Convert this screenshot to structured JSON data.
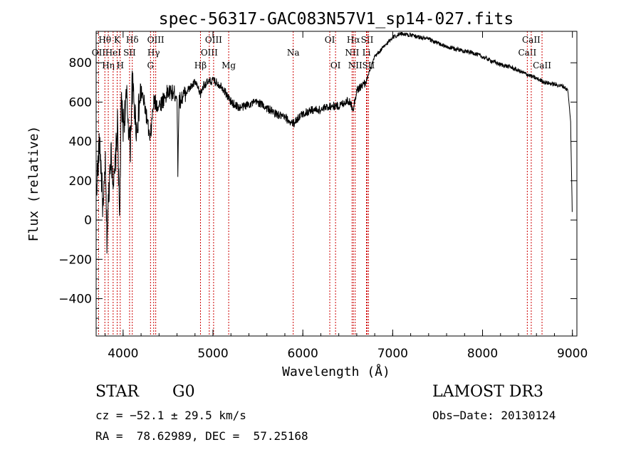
{
  "chart_data": {
    "type": "line",
    "title": "spec-56317-GAC083N57V1_sp14-027.fits",
    "xlabel": "Wavelength (Å)",
    "ylabel": "Flux (relative)",
    "xlim": [
      3700,
      9050
    ],
    "ylim": [
      -590,
      960
    ],
    "xticks": [
      4000,
      5000,
      6000,
      7000,
      8000,
      9000
    ],
    "yticks": [
      -400,
      -200,
      0,
      200,
      400,
      600,
      800
    ],
    "spectrum": {
      "name": "flux",
      "x": [
        3700,
        3740,
        3780,
        3800,
        3820,
        3860,
        3900,
        3940,
        3960,
        3980,
        4000,
        4040,
        4080,
        4100,
        4150,
        4200,
        4250,
        4300,
        4340,
        4400,
        4500,
        4600,
        4610,
        4620,
        4700,
        4800,
        4861,
        4900,
        5000,
        5100,
        5200,
        5300,
        5400,
        5500,
        5600,
        5700,
        5800,
        5893,
        5950,
        6000,
        6100,
        6200,
        6300,
        6400,
        6500,
        6563,
        6600,
        6700,
        6800,
        6900,
        7000,
        7100,
        7200,
        7300,
        7400,
        7500,
        7600,
        7700,
        7800,
        7900,
        8000,
        8100,
        8200,
        8300,
        8400,
        8500,
        8600,
        8700,
        8800,
        8900,
        8950,
        8980,
        9000
      ],
      "y": [
        150,
        400,
        20,
        300,
        -90,
        350,
        180,
        500,
        -40,
        600,
        480,
        620,
        360,
        700,
        460,
        660,
        560,
        400,
        600,
        580,
        650,
        640,
        210,
        600,
        650,
        700,
        640,
        690,
        710,
        680,
        600,
        570,
        590,
        600,
        570,
        540,
        520,
        490,
        520,
        540,
        560,
        560,
        580,
        580,
        610,
        570,
        660,
        700,
        830,
        880,
        930,
        950,
        940,
        930,
        920,
        900,
        880,
        870,
        860,
        850,
        830,
        810,
        790,
        780,
        760,
        740,
        720,
        700,
        690,
        680,
        660,
        500,
        -10
      ]
    },
    "emission_lines": [
      {
        "label": "OII",
        "x": 3727,
        "row": 1
      },
      {
        "label": "Hθ",
        "x": 3797,
        "row": 0
      },
      {
        "label": "Hη",
        "x": 3835,
        "row": 2
      },
      {
        "label": "HeI",
        "x": 3889,
        "row": 1
      },
      {
        "label": "K",
        "x": 3934,
        "row": 0
      },
      {
        "label": "H",
        "x": 3968,
        "row": 2
      },
      {
        "label": "SII",
        "x": 4072,
        "row": 1
      },
      {
        "label": "Hδ",
        "x": 4102,
        "row": 0
      },
      {
        "label": "Hγ",
        "x": 4340,
        "row": 1
      },
      {
        "label": "G",
        "x": 4305,
        "row": 2
      },
      {
        "label": "OIII",
        "x": 4363,
        "row": 0
      },
      {
        "label": "Hβ",
        "x": 4861,
        "row": 2
      },
      {
        "label": "OIII",
        "x": 4959,
        "row": 1
      },
      {
        "label": "OIII",
        "x": 5007,
        "row": 0
      },
      {
        "label": "Mg",
        "x": 5175,
        "row": 2
      },
      {
        "label": "Na",
        "x": 5893,
        "row": 1
      },
      {
        "label": "OI",
        "x": 6300,
        "row": 0
      },
      {
        "label": "OI",
        "x": 6364,
        "row": 2
      },
      {
        "label": "NII",
        "x": 6548,
        "row": 1
      },
      {
        "label": "Hα",
        "x": 6563,
        "row": 0
      },
      {
        "label": "NII",
        "x": 6583,
        "row": 2
      },
      {
        "label": "Li",
        "x": 6708,
        "row": 1
      },
      {
        "label": "SII",
        "x": 6716,
        "row": 0
      },
      {
        "label": "SII",
        "x": 6731,
        "row": 2
      },
      {
        "label": "CaII",
        "x": 8498,
        "row": 1
      },
      {
        "label": "CaII",
        "x": 8542,
        "row": 0
      },
      {
        "label": "CaII",
        "x": 8662,
        "row": 2
      }
    ],
    "line_color": "#cc0000"
  },
  "info": {
    "class_label": "STAR",
    "subclass": "G0",
    "survey": "LAMOST DR3",
    "cz": "cz = −52.1 ± 29.5 km/s",
    "obs_date": "Obs−Date: 20130124",
    "coords": "RA =  78.62989, DEC =  57.25168"
  }
}
